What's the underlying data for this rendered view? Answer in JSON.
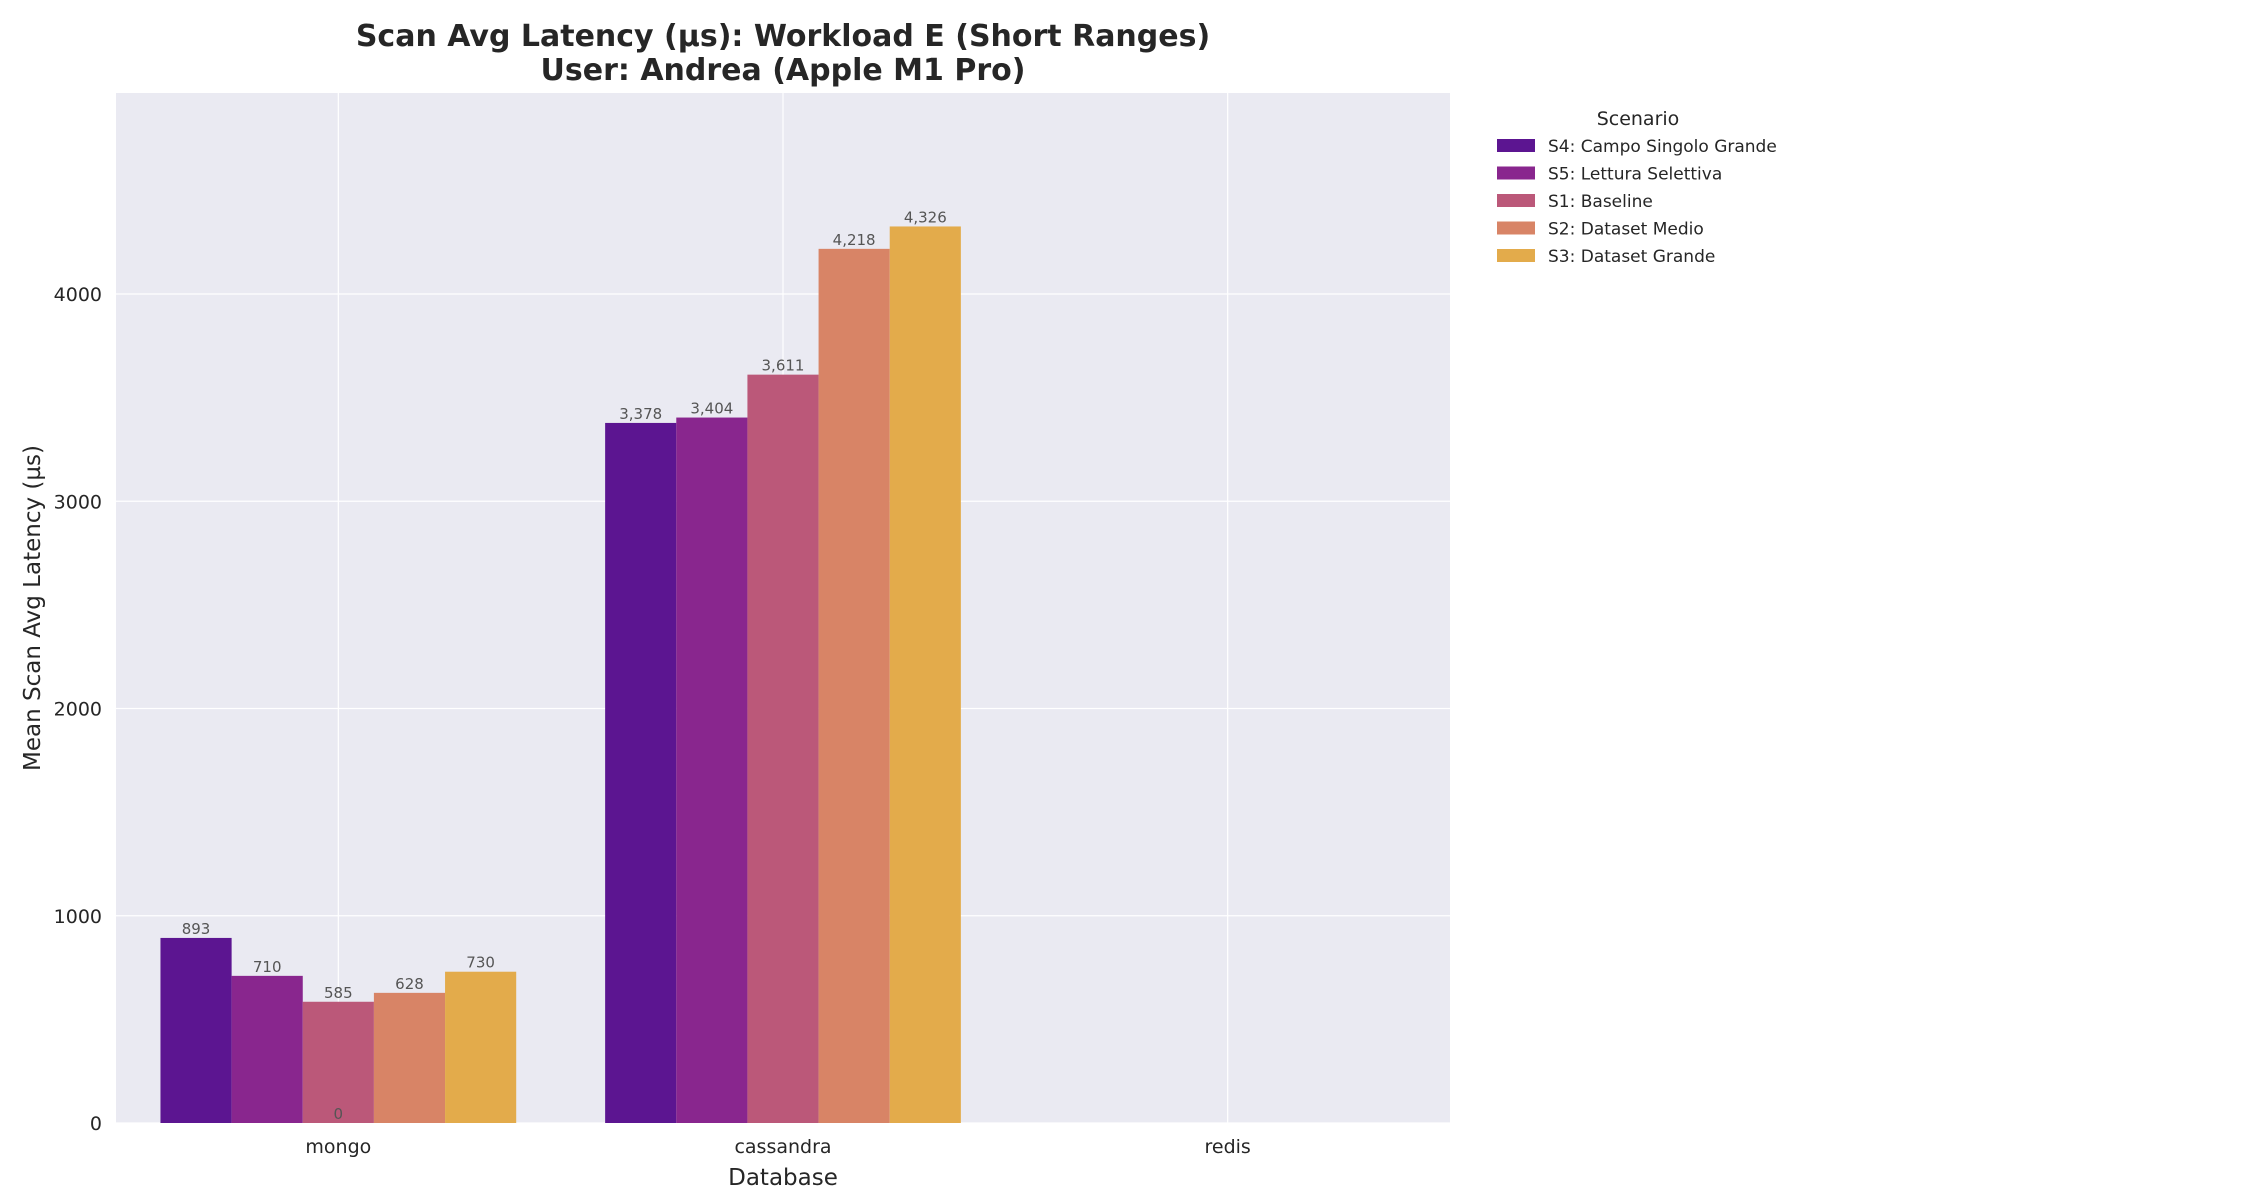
{
  "chart_data": {
    "type": "bar",
    "title": "Scan Avg Latency (µs): Workload E (Short Ranges)",
    "subtitle": "User: Andrea (Apple M1 Pro)",
    "xlabel": "Database",
    "ylabel": "Mean Scan Avg Latency (µs)",
    "categories": [
      "mongo",
      "cassandra",
      "redis"
    ],
    "ylim": [
      0,
      4970
    ],
    "yticks": [
      0,
      1000,
      2000,
      3000,
      4000
    ],
    "grid": true,
    "legend": {
      "title": "Scenario",
      "placement": "outside-top-right"
    },
    "series": [
      {
        "name": "S4: Campo Singolo Grande",
        "color": "#5c1591",
        "values": [
          893,
          3378,
          null
        ],
        "labels": [
          "893",
          "3,378",
          ""
        ]
      },
      {
        "name": "S5: Lettura Selettiva",
        "color": "#89268e",
        "values": [
          710,
          3404,
          null
        ],
        "labels": [
          "710",
          "3,404",
          ""
        ]
      },
      {
        "name": "S1: Baseline",
        "color": "#bb5879",
        "values": [
          585,
          3611,
          null
        ],
        "labels": [
          "585",
          "3,611",
          ""
        ]
      },
      {
        "name": "S2: Dataset Medio",
        "color": "#d88466",
        "values": [
          628,
          4218,
          null
        ],
        "labels": [
          "628",
          "4,218",
          ""
        ]
      },
      {
        "name": "S3: Dataset Grande",
        "color": "#e3ab4b",
        "values": [
          730,
          4326,
          null
        ],
        "labels": [
          "730",
          "4,326",
          ""
        ]
      }
    ],
    "annotations": [
      {
        "text": "0",
        "category": "mongo",
        "value": 0
      }
    ]
  }
}
